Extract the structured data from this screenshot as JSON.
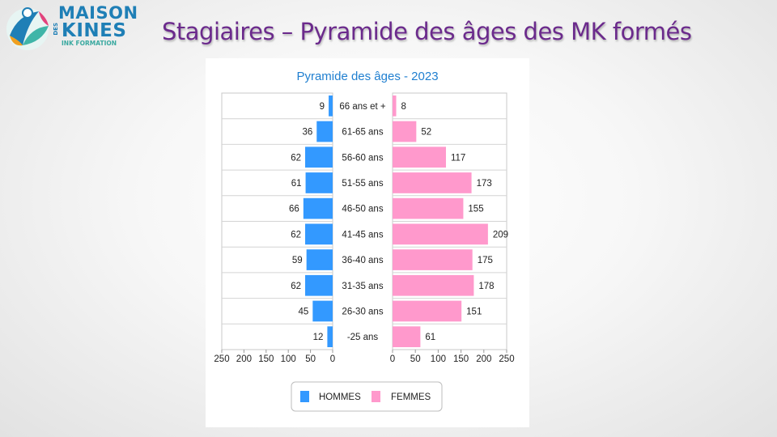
{
  "slide": {
    "title": "Stagiaires – Pyramide des âges des MK formés"
  },
  "logo": {
    "maison": "MAISON",
    "des": "DES",
    "kines": "KINES",
    "sub": "INK FORMATION"
  },
  "colors": {
    "title": "#6b2a8c",
    "hommes": "#3399ff",
    "femmes": "#ff99cc",
    "chart_title": "#1f7fd0"
  },
  "chart_data": {
    "type": "bar",
    "orientation": "horizontal",
    "title": "Pyramide des âges - 2023",
    "categories": [
      "66 ans et +",
      "61-65 ans",
      "56-60 ans",
      "51-55 ans",
      "46-50 ans",
      "41-45 ans",
      "36-40 ans",
      "31-35 ans",
      "26-30 ans",
      "-25 ans"
    ],
    "series": [
      {
        "name": "HOMMES",
        "values": [
          9,
          36,
          62,
          61,
          66,
          62,
          59,
          62,
          45,
          12
        ]
      },
      {
        "name": "FEMMES",
        "values": [
          8,
          52,
          117,
          173,
          155,
          209,
          175,
          178,
          151,
          61
        ]
      }
    ],
    "xlim": [
      0,
      250
    ],
    "x_ticks_left": [
      "250",
      "200",
      "150",
      "100",
      "50",
      "0"
    ],
    "x_ticks_right": [
      "0",
      "50",
      "100",
      "150",
      "200",
      "250"
    ],
    "grid": true,
    "legend_position": "bottom"
  }
}
